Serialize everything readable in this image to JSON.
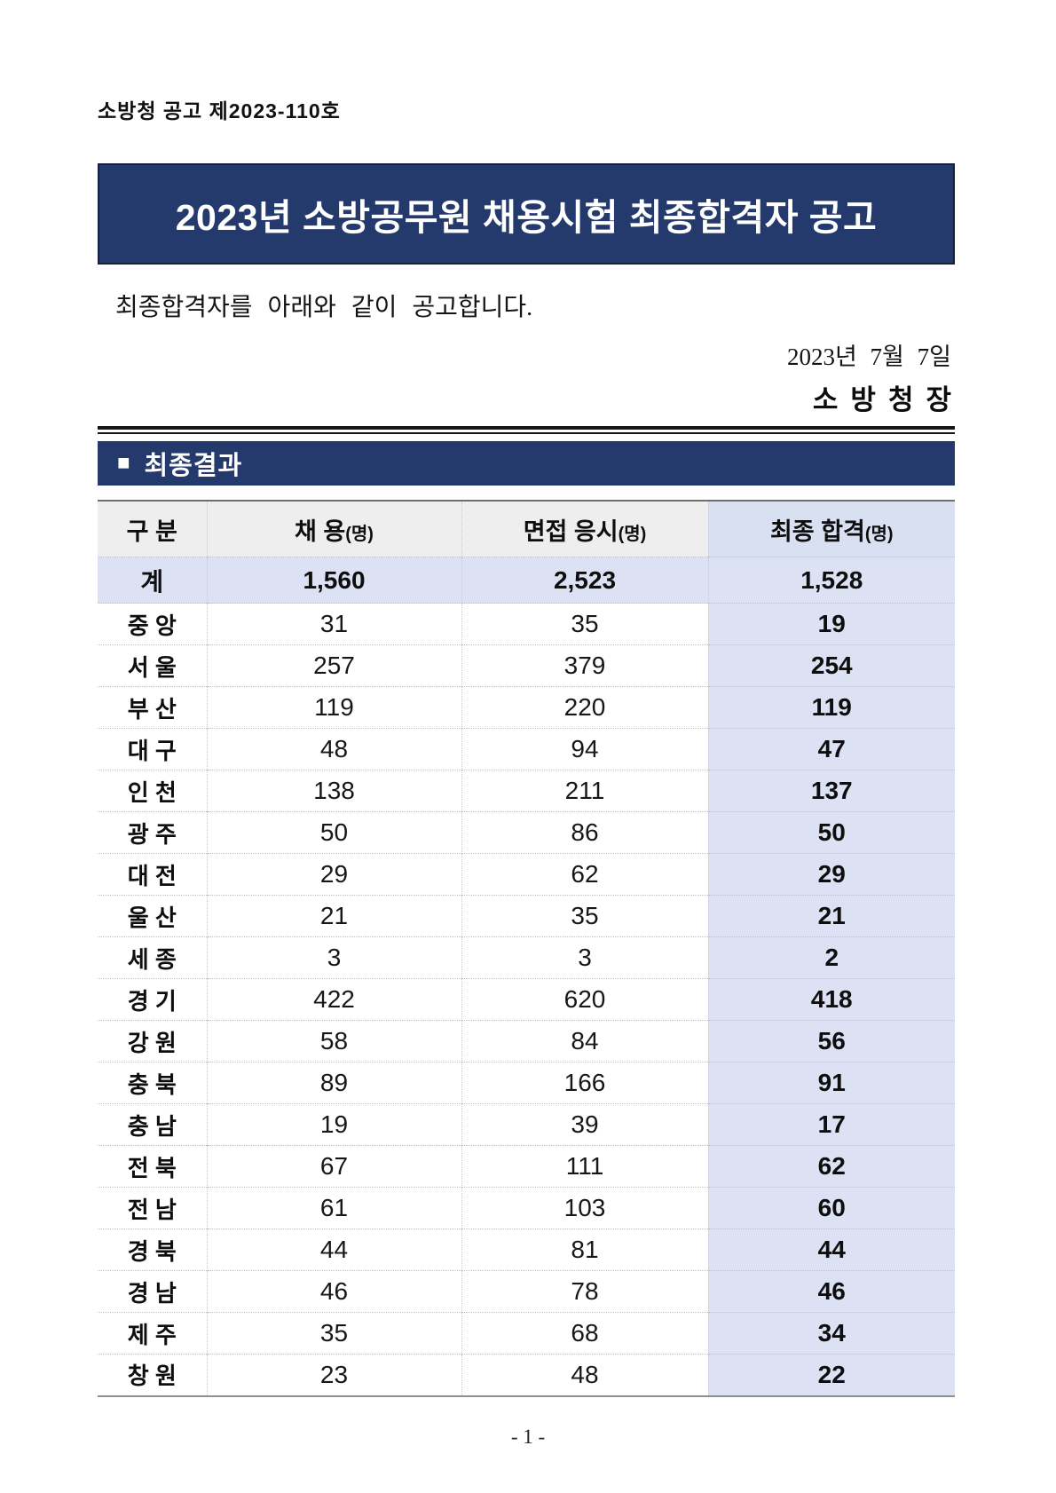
{
  "page": {
    "doc_number": "소방청 공고 제2023-110호",
    "title": "2023년 소방공무원 채용시험 최종합격자 공고",
    "intro": "최종합격자를 아래와 같이 공고합니다.",
    "date": "2023년 7월 7일",
    "signer": "소방청장",
    "section_bullet": "■",
    "section_title": "최종결과",
    "page_number": "- 1 -"
  },
  "colors": {
    "banner_navy": "#253a6c",
    "highlight_lavender": "#dce2f4",
    "header_gray": "#eeeeee"
  },
  "table": {
    "headers": [
      {
        "label": "구 분",
        "unit": ""
      },
      {
        "label": "채 용",
        "unit": "(명)"
      },
      {
        "label": "면접 응시",
        "unit": "(명)"
      },
      {
        "label": "최종 합격",
        "unit": "(명)"
      }
    ],
    "total_row": {
      "label": "계",
      "values": [
        "1,560",
        "2,523",
        "1,528"
      ]
    },
    "rows": [
      {
        "label": "중 앙",
        "values": [
          "31",
          "35",
          "19"
        ]
      },
      {
        "label": "서 울",
        "values": [
          "257",
          "379",
          "254"
        ]
      },
      {
        "label": "부 산",
        "values": [
          "119",
          "220",
          "119"
        ]
      },
      {
        "label": "대 구",
        "values": [
          "48",
          "94",
          "47"
        ]
      },
      {
        "label": "인 천",
        "values": [
          "138",
          "211",
          "137"
        ]
      },
      {
        "label": "광 주",
        "values": [
          "50",
          "86",
          "50"
        ]
      },
      {
        "label": "대 전",
        "values": [
          "29",
          "62",
          "29"
        ]
      },
      {
        "label": "울 산",
        "values": [
          "21",
          "35",
          "21"
        ]
      },
      {
        "label": "세 종",
        "values": [
          "3",
          "3",
          "2"
        ]
      },
      {
        "label": "경 기",
        "values": [
          "422",
          "620",
          "418"
        ]
      },
      {
        "label": "강 원",
        "values": [
          "58",
          "84",
          "56"
        ]
      },
      {
        "label": "충 북",
        "values": [
          "89",
          "166",
          "91"
        ]
      },
      {
        "label": "충 남",
        "values": [
          "19",
          "39",
          "17"
        ]
      },
      {
        "label": "전 북",
        "values": [
          "67",
          "111",
          "62"
        ]
      },
      {
        "label": "전 남",
        "values": [
          "61",
          "103",
          "60"
        ]
      },
      {
        "label": "경 북",
        "values": [
          "44",
          "81",
          "44"
        ]
      },
      {
        "label": "경 남",
        "values": [
          "46",
          "78",
          "46"
        ]
      },
      {
        "label": "제 주",
        "values": [
          "35",
          "68",
          "34"
        ]
      },
      {
        "label": "창 원",
        "values": [
          "23",
          "48",
          "22"
        ]
      }
    ]
  }
}
